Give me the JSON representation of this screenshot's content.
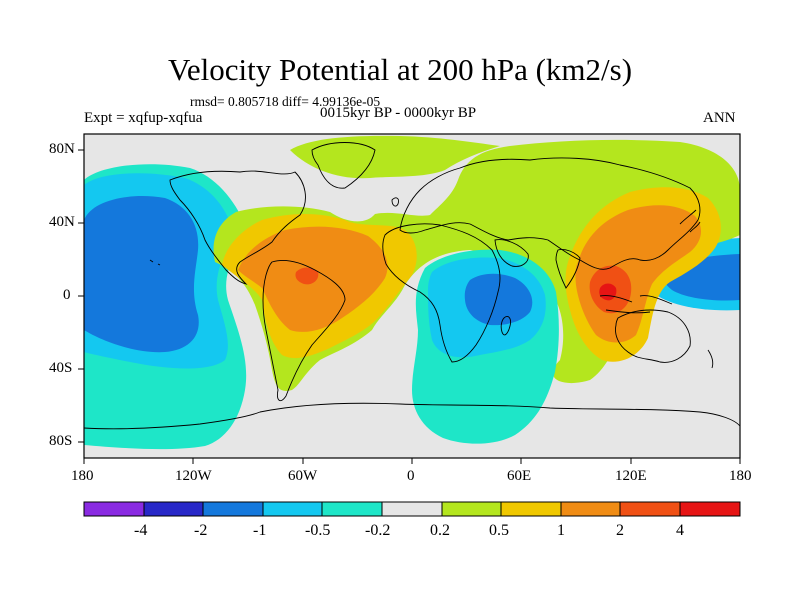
{
  "title": "Velocity Potential at 200 hPa (km2/s)",
  "stats": "rmsd= 0.805718 diff= 4.99136e-05",
  "expt": "Expt = xqfup-xqfua",
  "period": "0015kyr BP - 0000kyr BP",
  "season": "ANN",
  "y_ticks": [
    "80N",
    "40N",
    "0",
    "40S",
    "80S"
  ],
  "x_ticks": [
    "180",
    "120W",
    "60W",
    "0",
    "60E",
    "120E",
    "180"
  ],
  "colorbar": {
    "colors": [
      "#8a2be2",
      "#2828c8",
      "#1478dc",
      "#14c8f0",
      "#1ee6c8",
      "#e6e6e6",
      "#b4e61e",
      "#f0c800",
      "#f08c14",
      "#f05014",
      "#e61414"
    ],
    "labels": [
      "-4",
      "-2",
      "-1",
      "-0.5",
      "-0.2",
      "0.2",
      "0.5",
      "1",
      "2",
      "4"
    ]
  },
  "colors": {
    "ocean_background": "#e6e6e6",
    "level_m1": "#1478dc",
    "level_m05": "#14c8f0",
    "level_m02": "#1ee6c8",
    "level_p02": "#b4e61e",
    "level_p05": "#f0c800",
    "level_p1": "#f08c14",
    "level_p2": "#f05014",
    "level_p4": "#e61414"
  }
}
